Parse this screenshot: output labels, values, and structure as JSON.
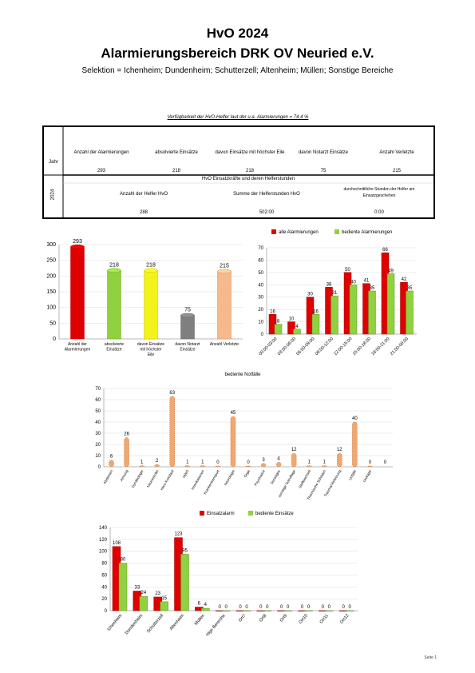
{
  "header": {
    "title": "HvO 2024",
    "subtitle": "Alarmierungsbereich DRK OV Neuried e.V.",
    "selection": "Selektion = Ichenheim; Dundenheim; Schutterzell; Altenheim; Müllen; Sonstige Bereiche"
  },
  "stats": {
    "caption": "Verfügbarkeit der HvO-Helfer laut der u.a. Alarmierungen = 74,4 %",
    "jahr_label": "Jahr",
    "year": "2024",
    "columns": [
      {
        "label": "Anzahl der Alarmierungen",
        "value": "293"
      },
      {
        "label": "absolvierte Einsätze",
        "value": "218"
      },
      {
        "label": "davon Einsätze mit höchster Eile",
        "value": "218"
      },
      {
        "label": "davon Notarzt Einsätze",
        "value": "75"
      },
      {
        "label": "Anzahl Verletzte",
        "value": "215"
      }
    ],
    "sub_title": "HvO Einsatzkräfte und deren Helferstunden",
    "helpers_label": "Anzahl der Helfer HvO",
    "helpers_value": "288",
    "hours_label": "Summe der Helferstunden HvO",
    "hours_value": "502:00",
    "avg_label": "durchschnittliche Stunden der Helfer am Einsatzgeschehen",
    "avg_value": "0:00"
  },
  "page_number": "Seite 1",
  "chart_data": [
    {
      "type": "bar",
      "categories": [
        "Anzahl der Alarmierungen",
        "absolvierte Einsätze",
        "davon Einsätze mit höchster Eile",
        "davon Notarzt Einsätze",
        "Anzahl Verletzte"
      ],
      "values": [
        293,
        218,
        218,
        75,
        215
      ],
      "colors": [
        "#e00000",
        "#8fd13f",
        "#f4f21a",
        "#7f7f7f",
        "#f5b98c"
      ],
      "ylim": [
        0,
        300
      ],
      "yticks": [
        0,
        50,
        100,
        150,
        200,
        250,
        300
      ]
    },
    {
      "type": "bar",
      "categories": [
        "00:00-03:00",
        "03:00-06:00",
        "06:00-09:00",
        "09:00-12:00",
        "12:00-15:00",
        "15:00-18:00",
        "18:00-21:00",
        "21:00-00:00"
      ],
      "series": [
        {
          "name": "alle Alarmierungen",
          "color": "#e00000",
          "values": [
            16,
            10,
            30,
            38,
            50,
            41,
            66,
            42
          ]
        },
        {
          "name": "bediente Alarmierungen",
          "color": "#8fd13f",
          "values": [
            8,
            4,
            16,
            31,
            40,
            35,
            49,
            35
          ]
        }
      ],
      "legend": "top",
      "ylim": [
        0,
        70
      ],
      "yticks": [
        0,
        10,
        20,
        30,
        40,
        50,
        60,
        70
      ]
    },
    {
      "type": "bar",
      "title": "bediente Notfälle",
      "categories": [
        "Abdomen",
        "Atmung",
        "Gynäkologie",
        "Neurostroke",
        "Herz-Kreislauf",
        "HWO",
        "Intoxikationen",
        "Krankentransport",
        "Neurologie",
        "Orga",
        "Psychiatrie",
        "Sonstiges",
        "sonstige Notruflage",
        "Stoffwechsel",
        "Thermische Schäden",
        "Trauma/Verletzung",
        "Unfälle",
        "Urologie"
      ],
      "values": [
        6,
        26,
        1,
        2,
        63,
        1,
        1,
        0,
        45,
        0,
        3,
        4,
        12,
        1,
        1,
        12,
        40,
        0
      ],
      "extra_labels": [
        "0"
      ],
      "color": "#f0a870",
      "ylim": [
        0,
        70
      ],
      "yticks": [
        0,
        10,
        20,
        30,
        40,
        50,
        60,
        70
      ]
    },
    {
      "type": "bar",
      "categories": [
        "Ichenheim",
        "Dundenheim",
        "Schutterzell",
        "Altenheim",
        "Müllen",
        "Sonstige Bereiche",
        "Ort7",
        "Ort8",
        "Ort9",
        "Ort10",
        "Ort11",
        "Ort12"
      ],
      "series": [
        {
          "name": "Einsatzalarm",
          "color": "#e00000",
          "values": [
            108,
            33,
            23,
            123,
            6,
            0,
            0,
            0,
            0,
            0,
            0,
            0
          ]
        },
        {
          "name": "bediente Einsätze",
          "color": "#8fd13f",
          "values": [
            80,
            24,
            15,
            95,
            4,
            0,
            0,
            0,
            0,
            0,
            0,
            0
          ]
        }
      ],
      "legend": "top",
      "ylim": [
        0,
        140
      ],
      "yticks": [
        0,
        20,
        40,
        60,
        80,
        100,
        120,
        140
      ]
    }
  ]
}
